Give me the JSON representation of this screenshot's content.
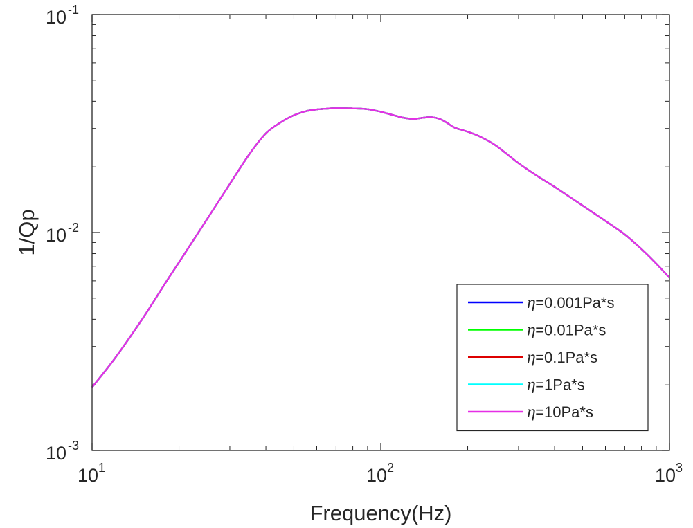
{
  "chart_data": {
    "type": "line",
    "title": "",
    "xlabel": "Frequency(Hz)",
    "ylabel": "1/Qp",
    "xscale": "log",
    "yscale": "log",
    "xlim": [
      10,
      1000
    ],
    "ylim": [
      0.001,
      0.1
    ],
    "grid": false,
    "legend_position": "bottom-right",
    "x_ticks": [
      {
        "base": "10",
        "exp": "1",
        "value": 10
      },
      {
        "base": "10",
        "exp": "2",
        "value": 100
      },
      {
        "base": "10",
        "exp": "3",
        "value": 1000
      }
    ],
    "y_ticks": [
      {
        "base": "10",
        "exp": "-3",
        "value": 0.001
      },
      {
        "base": "10",
        "exp": "-2",
        "value": 0.01
      },
      {
        "base": "10",
        "exp": "-1",
        "value": 0.1
      }
    ],
    "x": [
      10,
      12,
      15,
      18,
      20,
      25,
      30,
      35,
      40,
      45,
      50,
      55,
      60,
      65,
      70,
      80,
      90,
      100,
      110,
      120,
      130,
      140,
      150,
      160,
      170,
      180,
      200,
      220,
      250,
      300,
      350,
      400,
      500,
      600,
      700,
      800,
      900,
      1000
    ],
    "series": [
      {
        "name": "=0.001Pa*s",
        "color": "#0000ff",
        "values": [
          0.00195,
          0.00265,
          0.00405,
          0.0059,
          0.0073,
          0.0115,
          0.0167,
          0.0228,
          0.0285,
          0.032,
          0.0345,
          0.036,
          0.0367,
          0.037,
          0.0372,
          0.0371,
          0.0368,
          0.0358,
          0.0346,
          0.0336,
          0.0332,
          0.0336,
          0.0338,
          0.0332,
          0.0318,
          0.0303,
          0.029,
          0.0276,
          0.0251,
          0.0208,
          0.0181,
          0.0162,
          0.0133,
          0.0113,
          0.0098,
          0.0084,
          0.0072,
          0.0062
        ]
      },
      {
        "name": "=0.01Pa*s",
        "color": "#00ff00",
        "values": [
          0.00195,
          0.00265,
          0.00405,
          0.0059,
          0.0073,
          0.0115,
          0.0167,
          0.0228,
          0.0285,
          0.032,
          0.0345,
          0.036,
          0.0367,
          0.037,
          0.0372,
          0.0371,
          0.0368,
          0.0358,
          0.0346,
          0.0336,
          0.0332,
          0.0336,
          0.0338,
          0.0332,
          0.0318,
          0.0303,
          0.029,
          0.0276,
          0.0251,
          0.0208,
          0.0181,
          0.0162,
          0.0133,
          0.0113,
          0.0098,
          0.0084,
          0.0072,
          0.0062
        ]
      },
      {
        "name": "=0.1Pa*s",
        "color": "#dd0000",
        "values": [
          0.00195,
          0.00265,
          0.00405,
          0.0059,
          0.0073,
          0.0115,
          0.0167,
          0.0228,
          0.0285,
          0.032,
          0.0345,
          0.036,
          0.0367,
          0.037,
          0.0372,
          0.0371,
          0.0368,
          0.0358,
          0.0346,
          0.0336,
          0.0332,
          0.0336,
          0.0338,
          0.0332,
          0.0318,
          0.0303,
          0.029,
          0.0276,
          0.0251,
          0.0208,
          0.0181,
          0.0162,
          0.0133,
          0.0113,
          0.0098,
          0.0084,
          0.0072,
          0.0062
        ]
      },
      {
        "name": "=1Pa*s",
        "color": "#00ffff",
        "values": [
          0.00195,
          0.00265,
          0.00405,
          0.0059,
          0.0073,
          0.0115,
          0.0167,
          0.0228,
          0.0285,
          0.032,
          0.0345,
          0.036,
          0.0367,
          0.037,
          0.0372,
          0.0371,
          0.0368,
          0.0358,
          0.0346,
          0.0336,
          0.0332,
          0.0336,
          0.0338,
          0.0332,
          0.0318,
          0.0303,
          0.029,
          0.0276,
          0.0251,
          0.0208,
          0.0181,
          0.0162,
          0.0133,
          0.0113,
          0.0098,
          0.0084,
          0.0072,
          0.0062
        ]
      },
      {
        "name": "=10Pa*s",
        "color": "#e62ee6",
        "values": [
          0.00195,
          0.00265,
          0.00405,
          0.0059,
          0.0073,
          0.0115,
          0.0167,
          0.0228,
          0.0285,
          0.032,
          0.0345,
          0.036,
          0.0367,
          0.037,
          0.0372,
          0.0371,
          0.0368,
          0.0358,
          0.0346,
          0.0336,
          0.0332,
          0.0336,
          0.0338,
          0.0332,
          0.0318,
          0.0303,
          0.029,
          0.0276,
          0.0251,
          0.0208,
          0.0181,
          0.0162,
          0.0133,
          0.0113,
          0.0098,
          0.0084,
          0.0072,
          0.0062
        ]
      }
    ],
    "legend_symbol": "η"
  }
}
